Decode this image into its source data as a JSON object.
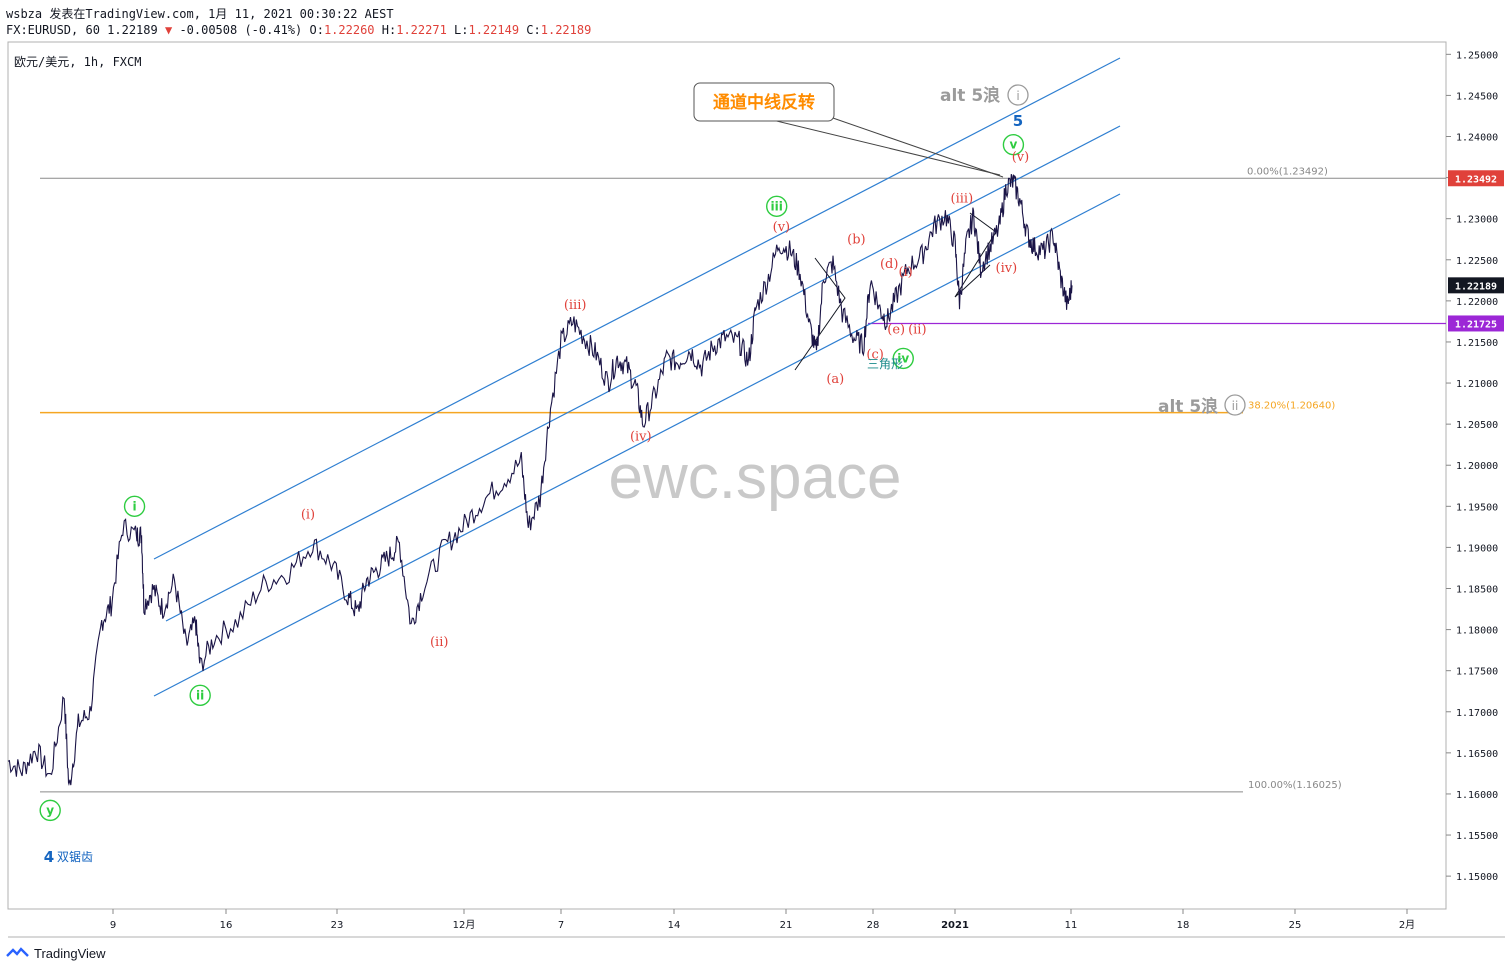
{
  "header": {
    "line1": "wsbza 发表在TradingView.com, 1月 11, 2021 00:30:22 AEST",
    "symbol_prefix": "FX:EURUSD, 60",
    "last": "1.22189",
    "arrow": "▼",
    "change": "-0.00508 (-0.41%)",
    "o_label": "O:",
    "o": "1.22260",
    "h_label": "H:",
    "h": "1.22271",
    "l_label": "L:",
    "l": "1.22149",
    "c_label": "C:",
    "c": "1.22189"
  },
  "symbol_label": "欧元/美元, 1h, FXCM",
  "watermark": "ewc.space",
  "footer": {
    "brand": "TradingView"
  },
  "colors": {
    "price_line": "#1a1446",
    "channel": "#2f7fd1",
    "wave_red": "#e0413a",
    "wave_green": "#2ecc40",
    "wave_grey": "#9b9b9b",
    "wave_blue": "#1565c0",
    "fib_orange": "#f5a623",
    "purple": "#9c27d6",
    "callout_text": "#ff8c00"
  },
  "chart_data": {
    "type": "line",
    "series": [
      {
        "values": [
          [
            3.4,
            1.164
          ],
          [
            4.0,
            1.1628
          ],
          [
            4.6,
            1.1655
          ],
          [
            5.2,
            1.162
          ],
          [
            5.8,
            1.172
          ],
          [
            6.0,
            1.1605
          ],
          [
            6.4,
            1.1685
          ],
          [
            6.9,
            1.17
          ],
          [
            7.4,
            1.181
          ],
          [
            7.8,
            1.183
          ],
          [
            8.3,
            1.1925
          ],
          [
            8.9,
            1.1915
          ],
          [
            9.1,
            1.1915
          ],
          [
            9.2,
            1.183
          ],
          [
            9.6,
            1.185
          ],
          [
            10.0,
            1.1825
          ],
          [
            10.5,
            1.186
          ],
          [
            11.0,
            1.178
          ],
          [
            11.4,
            1.181
          ],
          [
            11.6,
            1.1755
          ],
          [
            12.2,
            1.179
          ],
          [
            13.2,
            1.181
          ],
          [
            14.3,
            1.1855
          ],
          [
            15.4,
            1.187
          ],
          [
            16.4,
            1.1905
          ],
          [
            17.2,
            1.188
          ],
          [
            17.9,
            1.184
          ],
          [
            18.3,
            1.182
          ],
          [
            18.7,
            1.186
          ],
          [
            19.2,
            1.1875
          ],
          [
            19.7,
            1.189
          ],
          [
            20.1,
            1.1905
          ],
          [
            20.6,
            1.1805
          ],
          [
            21.1,
            1.185
          ],
          [
            22.0,
            1.19
          ],
          [
            22.8,
            1.1925
          ],
          [
            23.6,
            1.1955
          ],
          [
            24.5,
            1.198
          ],
          [
            25.3,
            1.2005
          ],
          [
            25.6,
            1.1925
          ],
          [
            26.1,
            1.196
          ],
          [
            26.5,
            1.206
          ],
          [
            27.0,
            1.215
          ],
          [
            27.5,
            1.2175
          ],
          [
            28.0,
            1.2155
          ],
          [
            28.5,
            1.2135
          ],
          [
            29.0,
            1.21
          ],
          [
            29.4,
            1.213
          ],
          [
            29.8,
            1.212
          ],
          [
            30.2,
            1.2095
          ],
          [
            30.5,
            1.205
          ],
          [
            31.0,
            1.2085
          ],
          [
            31.5,
            1.213
          ],
          [
            32.0,
            1.2125
          ],
          [
            32.5,
            1.214
          ],
          [
            33.0,
            1.212
          ],
          [
            33.5,
            1.2145
          ],
          [
            34.0,
            1.2155
          ],
          [
            34.6,
            1.215
          ],
          [
            35.0,
            1.2125
          ],
          [
            35.3,
            1.219
          ],
          [
            35.8,
            1.2225
          ],
          [
            36.3,
            1.227
          ],
          [
            36.8,
            1.226
          ],
          [
            37.2,
            1.2235
          ],
          [
            37.6,
            1.217
          ],
          [
            37.9,
            1.2135
          ],
          [
            38.2,
            1.223
          ],
          [
            38.6,
            1.2245
          ],
          [
            39.0,
            1.2185
          ],
          [
            39.5,
            1.2155
          ],
          [
            39.9,
            1.2145
          ],
          [
            40.2,
            1.2225
          ],
          [
            40.6,
            1.219
          ],
          [
            40.9,
            1.2175
          ],
          [
            41.3,
            1.2205
          ],
          [
            41.8,
            1.224
          ],
          [
            42.4,
            1.2255
          ],
          [
            42.9,
            1.229
          ],
          [
            43.4,
            1.2305
          ],
          [
            43.8,
            1.227
          ],
          [
            44.0,
            1.22
          ],
          [
            44.3,
            1.227
          ],
          [
            44.6,
            1.2305
          ],
          [
            44.9,
            1.224
          ],
          [
            45.3,
            1.2265
          ],
          [
            45.7,
            1.229
          ],
          [
            46.0,
            1.234
          ],
          [
            46.3,
            1.2345
          ],
          [
            46.6,
            1.232
          ],
          [
            46.9,
            1.228
          ],
          [
            47.2,
            1.2265
          ],
          [
            47.6,
            1.226
          ],
          [
            48.0,
            1.228
          ],
          [
            48.3,
            1.223
          ],
          [
            48.6,
            1.2194
          ],
          [
            48.8,
            1.2219
          ]
        ]
      }
    ],
    "y_tick_labels": [
      "1.25000",
      "1.24500",
      "1.24000",
      "1.23500",
      "1.23000",
      "1.22500",
      "1.22000",
      "1.21500",
      "1.21000",
      "1.20500",
      "1.20000",
      "1.19500",
      "1.19000",
      "1.18500",
      "1.18000",
      "1.17500",
      "1.17000",
      "1.16500",
      "1.16000",
      "1.15500",
      "1.15000"
    ],
    "x_tick_labels": [
      "9",
      "16",
      "23",
      "12月",
      "7",
      "14",
      "21",
      "28",
      "2021",
      "11",
      "18",
      "25",
      "2月"
    ],
    "ylim": [
      1.146,
      1.2515
    ],
    "price_tags": [
      {
        "label": "1.23492",
        "value": 1.23492,
        "color": "#e0413a"
      },
      {
        "label": "1.22189",
        "value": 1.22189,
        "color": "#131722"
      },
      {
        "label": "1.21725",
        "value": 1.21725,
        "color": "#9c27d6"
      }
    ],
    "levels": [
      {
        "label": "0.00%(1.23492)",
        "value": 1.23492,
        "color": "#888888"
      },
      {
        "label": "38.20%(1.20640)",
        "value": 1.2064,
        "color": "#f5a623"
      },
      {
        "label": "100.00%(1.16025)",
        "value": 1.16025,
        "color": "#888888"
      }
    ],
    "wave_labels": [
      {
        "text": "i",
        "x": 8.8,
        "y": 1.195,
        "style": "circle-green"
      },
      {
        "text": "ii",
        "x": 11.6,
        "y": 1.172,
        "style": "circle-green"
      },
      {
        "text": "iii",
        "x": 36.2,
        "y": 1.2315,
        "style": "circle-green"
      },
      {
        "text": "iv",
        "x": 41.6,
        "y": 1.213,
        "style": "circle-green"
      },
      {
        "text": "v",
        "x": 46.3,
        "y": 1.239,
        "style": "circle-green"
      },
      {
        "text": "y",
        "x": 5.2,
        "y": 1.158,
        "style": "circle-green"
      },
      {
        "text": "(i)",
        "x": 16.2,
        "y": 1.1935,
        "style": "red"
      },
      {
        "text": "(ii)",
        "x": 21.8,
        "y": 1.178,
        "style": "red"
      },
      {
        "text": "(iii)",
        "x": 27.6,
        "y": 1.219,
        "style": "red"
      },
      {
        "text": "(iv)",
        "x": 30.4,
        "y": 1.203,
        "style": "red"
      },
      {
        "text": "(v)",
        "x": 36.4,
        "y": 1.2285,
        "style": "red"
      },
      {
        "text": "(a)",
        "x": 38.7,
        "y": 1.21,
        "style": "red"
      },
      {
        "text": "(b)",
        "x": 39.6,
        "y": 1.227,
        "style": "red"
      },
      {
        "text": "(c)",
        "x": 40.4,
        "y": 1.213,
        "style": "red"
      },
      {
        "text": "(d)",
        "x": 41.0,
        "y": 1.224,
        "style": "red"
      },
      {
        "text": "(e)",
        "x": 41.3,
        "y": 1.216,
        "style": "red"
      },
      {
        "text": "(i)",
        "x": 41.7,
        "y": 1.223,
        "style": "red"
      },
      {
        "text": "(ii)",
        "x": 42.2,
        "y": 1.216,
        "style": "red"
      },
      {
        "text": "(iii)",
        "x": 44.1,
        "y": 1.232,
        "style": "red"
      },
      {
        "text": "(iv)",
        "x": 46.0,
        "y": 1.2235,
        "style": "red"
      },
      {
        "text": "(v)",
        "x": 46.6,
        "y": 1.237,
        "style": "red"
      }
    ],
    "annotations": [
      {
        "text": "三角形",
        "style": "teal"
      },
      {
        "text": "5",
        "style": "blue-bold"
      },
      {
        "text": "4",
        "style": "blue-bold"
      },
      {
        "text": "双锯齿",
        "style": "blue"
      },
      {
        "text": "alt 5浪",
        "style": "grey-bold",
        "circled": "i"
      },
      {
        "text": "alt 5浪",
        "style": "grey-bold",
        "circled": "ii"
      },
      {
        "text": "通道中线反转",
        "style": "callout"
      }
    ]
  }
}
